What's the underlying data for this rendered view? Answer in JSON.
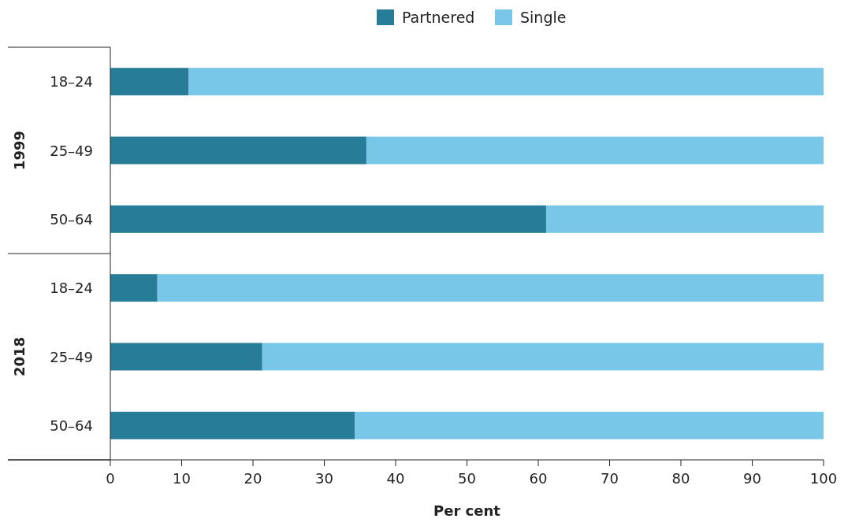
{
  "chart_data": {
    "type": "bar",
    "orientation": "horizontal",
    "stacked": true,
    "xlabel": "Per cent",
    "legend": "top",
    "categories": [
      "18–24",
      "25–49",
      "50–64",
      "18–24",
      "25–49",
      "50–64"
    ],
    "series": [
      {
        "name": "Partnered",
        "color": "#277c97",
        "values": [
          11.0,
          35.9,
          61.1,
          6.6,
          21.3,
          34.3
        ]
      },
      {
        "name": "Single",
        "color": "#78c7e8",
        "values": [
          89.0,
          64.1,
          38.9,
          93.4,
          78.7,
          65.7
        ]
      }
    ],
    "xlim": [
      0,
      100
    ],
    "xticks": [
      0,
      10,
      20,
      30,
      40,
      50,
      60,
      70,
      80,
      90,
      100
    ],
    "annotations": [
      "1999",
      "2018"
    ]
  }
}
